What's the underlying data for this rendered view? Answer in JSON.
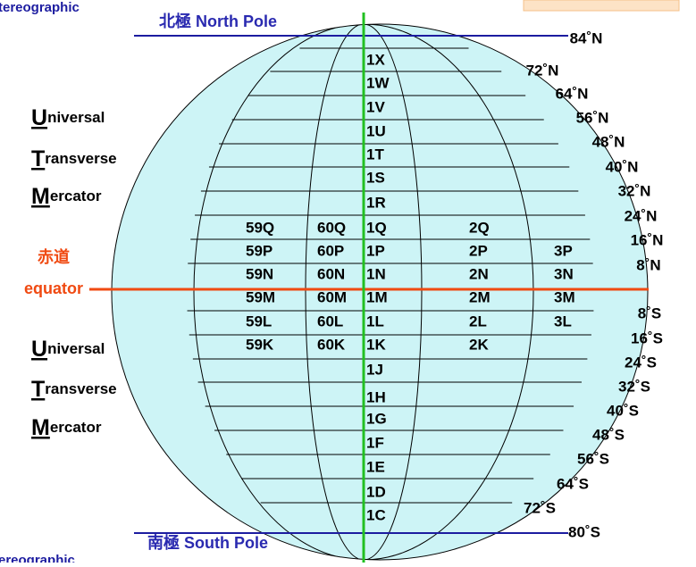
{
  "header": {
    "top_cut": "tereographic",
    "bottom_cut": "ereographic"
  },
  "poles": {
    "north": "北極 North Pole",
    "south": "南極 South Pole"
  },
  "equator": {
    "chinese": "赤道",
    "english": "equator"
  },
  "utm_top": [
    {
      "initial": "U",
      "rest": "niversal"
    },
    {
      "initial": "T",
      "rest": "ransverse"
    },
    {
      "initial": "M",
      "rest": "ercator"
    }
  ],
  "utm_bottom": [
    {
      "initial": "U",
      "rest": "niversal"
    },
    {
      "initial": "T",
      "rest": "ransverse"
    },
    {
      "initial": "M",
      "rest": "ercator"
    }
  ],
  "latitudes_north": [
    "84˚N",
    "72˚N",
    "64˚N",
    "56˚N",
    "48˚N",
    "40˚N",
    "32˚N",
    "24˚N",
    "16˚N",
    "8˚N"
  ],
  "latitudes_south": [
    "8˚S",
    "16˚S",
    "24˚S",
    "32˚S",
    "40˚S",
    "48˚S",
    "56˚S",
    "64˚S",
    "72˚S",
    "80˚S"
  ],
  "zones": {
    "column_1": [
      "1X",
      "1W",
      "1V",
      "1U",
      "1T",
      "1S",
      "1R",
      "1Q",
      "1P",
      "1N",
      "1M",
      "1L",
      "1K",
      "1J",
      "1H",
      "1G",
      "1F",
      "1E",
      "1D",
      "1C"
    ],
    "column_59": [
      "59Q",
      "59P",
      "59N",
      "59M",
      "59L",
      "59K"
    ],
    "column_60": [
      "60Q",
      "60P",
      "60N",
      "60M",
      "60L",
      "60K"
    ],
    "column_2": [
      "2Q",
      "2P",
      "2N",
      "2M",
      "2L",
      "2K"
    ],
    "column_3": [
      "3P",
      "3N",
      "3M",
      "3L"
    ]
  }
}
